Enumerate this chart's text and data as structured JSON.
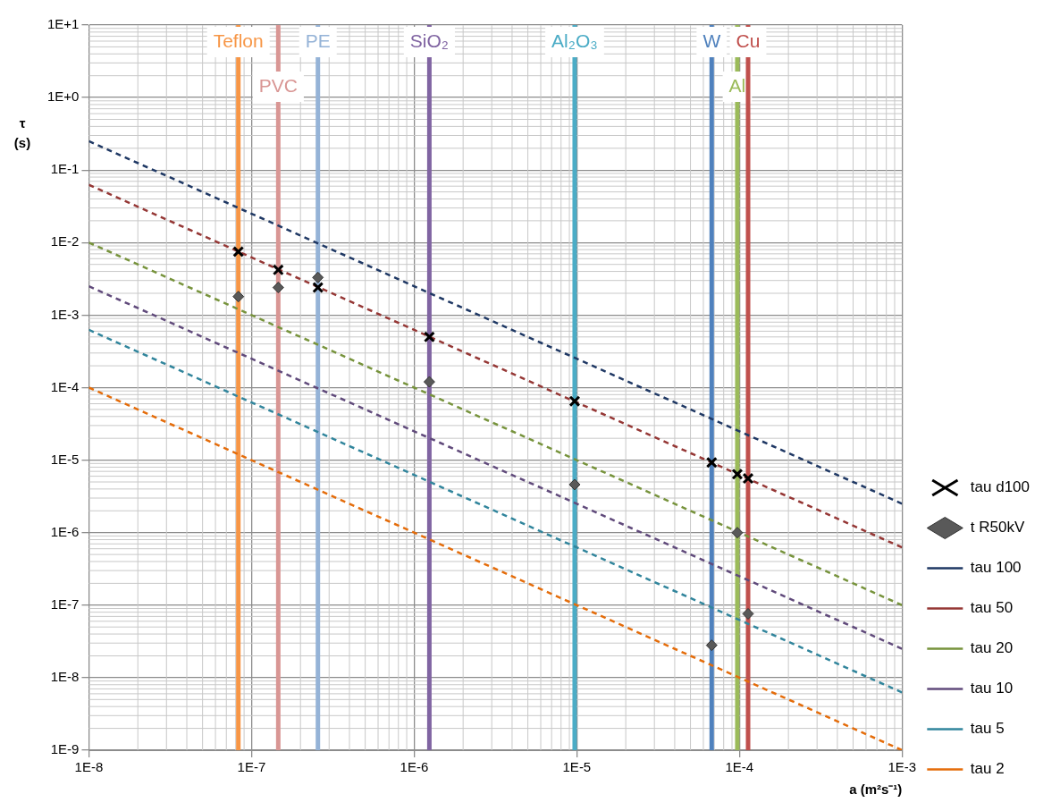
{
  "chart_data": {
    "type": "scatter",
    "xlabel": "a (m²s⁻¹)",
    "ylabel": "τ (s)",
    "log": "xy",
    "grid": true,
    "legend": "right",
    "xlim": [
      1e-08,
      0.001
    ],
    "ylim": [
      1e-09,
      10
    ],
    "xticks": [
      {
        "value": 1e-08,
        "label": "1E-8"
      },
      {
        "value": 1e-07,
        "label": "1E-7"
      },
      {
        "value": 1e-06,
        "label": "1E-6"
      },
      {
        "value": 1e-05,
        "label": "1E-5"
      },
      {
        "value": 0.0001,
        "label": "1E-4"
      },
      {
        "value": 0.001,
        "label": "1E-3"
      }
    ],
    "yticks": [
      {
        "value": 1e-09,
        "label": "1E-9"
      },
      {
        "value": 1e-08,
        "label": "1E-8"
      },
      {
        "value": 1e-07,
        "label": "1E-7"
      },
      {
        "value": 1e-06,
        "label": "1E-6"
      },
      {
        "value": 1e-05,
        "label": "1E-5"
      },
      {
        "value": 0.0001,
        "label": "1E-4"
      },
      {
        "value": 0.001,
        "label": "1E-3"
      },
      {
        "value": 0.01,
        "label": "1E-2"
      },
      {
        "value": 0.1,
        "label": "1E-1"
      },
      {
        "value": 1,
        "label": "1E+0"
      },
      {
        "value": 10,
        "label": "1E+1"
      }
    ],
    "series": [
      {
        "name": "tau d100",
        "marker": "cross",
        "color": "#000000",
        "x": [
          8.3e-08,
          1.46e-07,
          2.56e-07,
          1.24e-06,
          9.7e-06,
          6.75e-05,
          9.7e-05,
          0.000113
        ],
        "values": [
          0.0075,
          0.0042,
          0.0024,
          0.0005,
          6.5e-05,
          9.3e-06,
          6.4e-06,
          5.6e-06
        ]
      },
      {
        "name": "t R50kV",
        "marker": "diamond",
        "color": "#595959",
        "x": [
          8.3e-08,
          1.46e-07,
          2.56e-07,
          1.24e-06,
          9.7e-06,
          6.75e-05,
          9.7e-05,
          0.000113
        ],
        "values": [
          0.0018,
          0.0024,
          0.0033,
          0.00012,
          4.6e-06,
          2.8e-08,
          1e-06,
          7.6e-08
        ]
      },
      {
        "name": "tau 100",
        "type": "line",
        "line_style": "dashed",
        "color": "#1f3864",
        "x": [
          1e-08,
          0.001
        ],
        "values": [
          0.25,
          2.5e-06
        ]
      },
      {
        "name": "tau 50",
        "type": "line",
        "line_style": "dashed",
        "color": "#953735",
        "x": [
          1e-08,
          0.001
        ],
        "values": [
          0.0625,
          6.25e-07
        ]
      },
      {
        "name": "tau 20",
        "type": "line",
        "line_style": "dashed",
        "color": "#77933c",
        "x": [
          1e-08,
          0.001
        ],
        "values": [
          0.01,
          1e-07
        ]
      },
      {
        "name": "tau 10",
        "type": "line",
        "line_style": "dashed",
        "color": "#604a7b",
        "x": [
          1e-08,
          0.001
        ],
        "values": [
          0.0025,
          2.5e-08
        ]
      },
      {
        "name": "tau 5",
        "type": "line",
        "line_style": "dashed",
        "color": "#31859c",
        "x": [
          1e-08,
          0.001
        ],
        "values": [
          0.000625,
          6.25e-09
        ]
      },
      {
        "name": "tau 2",
        "type": "line",
        "line_style": "dashed",
        "color": "#e46c0a",
        "x": [
          1e-08,
          0.001
        ],
        "values": [
          0.0001,
          1e-09
        ]
      }
    ],
    "ref_lines": [
      {
        "axis": "x",
        "value": 8.3e-08,
        "label": "Teflon",
        "color": "#f79646"
      },
      {
        "axis": "x",
        "value": 1.46e-07,
        "label": "PVC",
        "color": "#d99694"
      },
      {
        "axis": "x",
        "value": 2.56e-07,
        "label": "PE",
        "color": "#95b3d7"
      },
      {
        "axis": "x",
        "value": 1.24e-06,
        "label": "SiO₂",
        "color": "#8064a2"
      },
      {
        "axis": "x",
        "value": 9.7e-06,
        "label": "Al₂O₃",
        "color": "#4bacc6"
      },
      {
        "axis": "x",
        "value": 6.75e-05,
        "label": "W",
        "color": "#4f81bd"
      },
      {
        "axis": "x",
        "value": 9.7e-05,
        "label": "Al",
        "color": "#9bbb59"
      },
      {
        "axis": "x",
        "value": 0.000113,
        "label": "Cu",
        "color": "#c0504d"
      }
    ]
  }
}
